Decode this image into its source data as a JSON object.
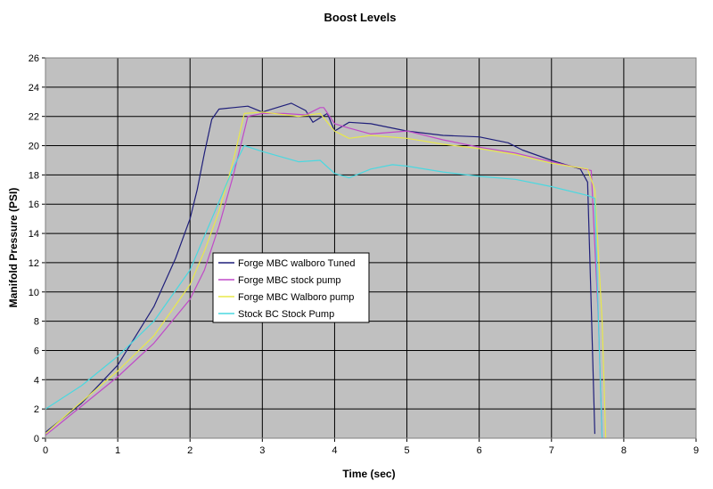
{
  "chart_data": {
    "type": "line",
    "title": "Boost Levels",
    "xlabel": "Time (sec)",
    "ylabel": "Manifold Pressure (PSI)",
    "xlim": [
      0,
      9
    ],
    "ylim": [
      0,
      26
    ],
    "xticks": [
      0,
      1,
      2,
      3,
      4,
      5,
      6,
      7,
      8,
      9
    ],
    "yticks": [
      0,
      2,
      4,
      6,
      8,
      10,
      12,
      14,
      16,
      18,
      20,
      22,
      24,
      26
    ],
    "grid": true,
    "plot_background": "#c0c0c0",
    "legend_position": "center-left",
    "series": [
      {
        "name": "Forge MBC walboro Tuned",
        "color": "#1f1f7a",
        "x": [
          0.0,
          0.2,
          0.5,
          1.0,
          1.5,
          1.8,
          2.0,
          2.1,
          2.2,
          2.3,
          2.4,
          2.6,
          2.8,
          3.0,
          3.2,
          3.4,
          3.6,
          3.7,
          3.8,
          3.9,
          4.0,
          4.2,
          4.5,
          5.0,
          5.5,
          6.0,
          6.4,
          6.6,
          7.0,
          7.4,
          7.5,
          7.55,
          7.6
        ],
        "y": [
          0.4,
          1.2,
          2.4,
          5.0,
          9.0,
          12.3,
          15.0,
          17.0,
          19.5,
          21.8,
          22.5,
          22.6,
          22.7,
          22.3,
          22.6,
          22.9,
          22.4,
          21.6,
          21.9,
          22.2,
          21.0,
          21.6,
          21.5,
          21.0,
          20.7,
          20.6,
          20.2,
          19.7,
          19.0,
          18.4,
          17.5,
          9.0,
          0.3
        ]
      },
      {
        "name": "Forge MBC stock pump",
        "color": "#c04ac8",
        "x": [
          0.0,
          0.2,
          0.5,
          1.0,
          1.5,
          2.0,
          2.2,
          2.4,
          2.6,
          2.8,
          3.0,
          3.3,
          3.6,
          3.8,
          3.85,
          4.0,
          4.2,
          4.5,
          5.0,
          5.5,
          6.0,
          6.5,
          7.0,
          7.45,
          7.55,
          7.65,
          7.7
        ],
        "y": [
          0.2,
          1.0,
          2.2,
          4.2,
          6.5,
          9.5,
          11.5,
          14.5,
          18.0,
          22.0,
          22.2,
          22.2,
          22.1,
          22.6,
          22.6,
          21.5,
          21.2,
          20.8,
          21.0,
          20.4,
          19.9,
          19.5,
          18.9,
          18.4,
          18.3,
          8.0,
          0.0
        ]
      },
      {
        "name": "Forge MBC Walboro pump",
        "color": "#e8e84a",
        "x": [
          0.0,
          0.2,
          0.5,
          1.0,
          1.5,
          2.0,
          2.2,
          2.4,
          2.6,
          2.75,
          3.0,
          3.5,
          3.8,
          4.0,
          4.2,
          4.5,
          5.0,
          5.5,
          6.0,
          6.5,
          7.0,
          7.5,
          7.6,
          7.7,
          7.75
        ],
        "y": [
          0.3,
          1.2,
          2.5,
          4.6,
          7.0,
          10.5,
          12.8,
          15.5,
          19.0,
          22.2,
          22.3,
          22.0,
          22.2,
          21.0,
          20.5,
          20.7,
          20.5,
          20.1,
          19.8,
          19.4,
          18.8,
          18.4,
          17.0,
          8.0,
          0.0
        ]
      },
      {
        "name": "Stock BC Stock Pump",
        "color": "#4ad8e0",
        "x": [
          0.0,
          0.5,
          1.0,
          1.5,
          2.0,
          2.3,
          2.6,
          2.75,
          3.0,
          3.5,
          3.8,
          4.0,
          4.2,
          4.5,
          4.8,
          5.0,
          5.5,
          6.0,
          6.5,
          7.0,
          7.5,
          7.6,
          7.65,
          7.7
        ],
        "y": [
          2.0,
          3.6,
          5.6,
          8.0,
          11.5,
          15.0,
          18.5,
          20.0,
          19.6,
          18.9,
          19.0,
          18.1,
          17.8,
          18.4,
          18.7,
          18.6,
          18.2,
          17.9,
          17.7,
          17.2,
          16.6,
          16.4,
          8.0,
          0.0
        ]
      }
    ]
  }
}
